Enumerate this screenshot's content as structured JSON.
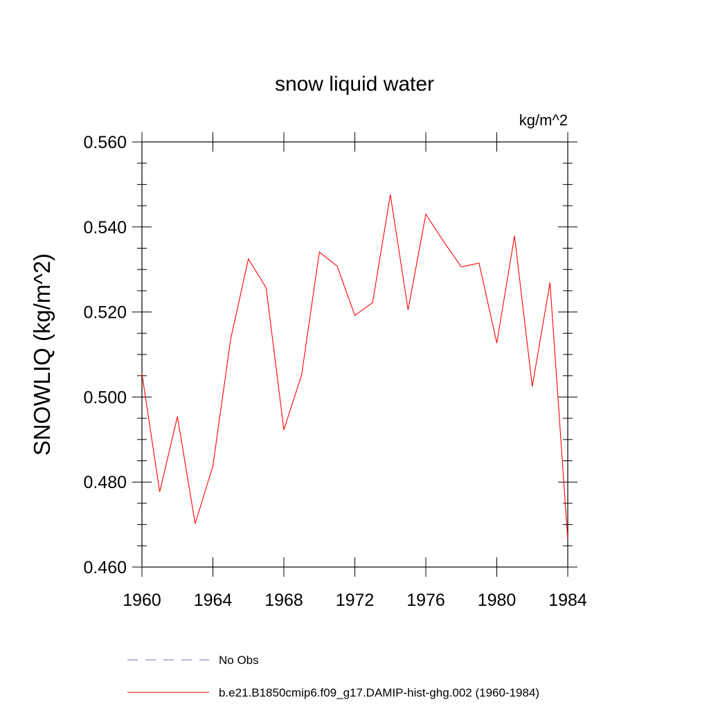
{
  "chart_data": {
    "type": "line",
    "title": "snow liquid water",
    "units_label": "kg/m^2",
    "ylabel": "SNOWLIQ  (kg/m^2)",
    "xlabel": "",
    "xlim": [
      1960,
      1984
    ],
    "ylim": [
      0.46,
      0.56
    ],
    "x_ticks": [
      1960,
      1964,
      1968,
      1972,
      1976,
      1980,
      1984
    ],
    "x_tick_labels": [
      "1960",
      "1964",
      "1968",
      "1972",
      "1976",
      "1980",
      "1984"
    ],
    "y_ticks": [
      0.46,
      0.48,
      0.5,
      0.52,
      0.54,
      0.56
    ],
    "y_tick_labels": [
      "0.460",
      "0.480",
      "0.500",
      "0.520",
      "0.540",
      "0.560"
    ],
    "grid": false,
    "legend_position": "bottom",
    "series": [
      {
        "name": "b.e21.B1850cmip6.f09_g17.DAMIP-hist-ghg.002 (1960-1984)",
        "color": "#ff0000",
        "style": "solid",
        "x": [
          1960,
          1961,
          1962,
          1963,
          1964,
          1965,
          1966,
          1967,
          1968,
          1969,
          1970,
          1971,
          1972,
          1973,
          1974,
          1975,
          1976,
          1977,
          1978,
          1979,
          1980,
          1981,
          1982,
          1983,
          1984
        ],
        "values": [
          0.5055,
          0.4777,
          0.4954,
          0.4702,
          0.4838,
          0.5136,
          0.5325,
          0.5257,
          0.4923,
          0.5052,
          0.5341,
          0.5308,
          0.5192,
          0.5222,
          0.5476,
          0.5205,
          0.543,
          0.5366,
          0.5306,
          0.5315,
          0.5127,
          0.5379,
          0.5025,
          0.5269,
          0.4665
        ]
      }
    ],
    "legend": [
      {
        "label": "No Obs",
        "color": "#7b68b0",
        "style": "dashed"
      },
      {
        "label": "b.e21.B1850cmip6.f09_g17.DAMIP-hist-ghg.002 (1960-1984)",
        "color": "#ff0000",
        "style": "solid"
      }
    ]
  }
}
